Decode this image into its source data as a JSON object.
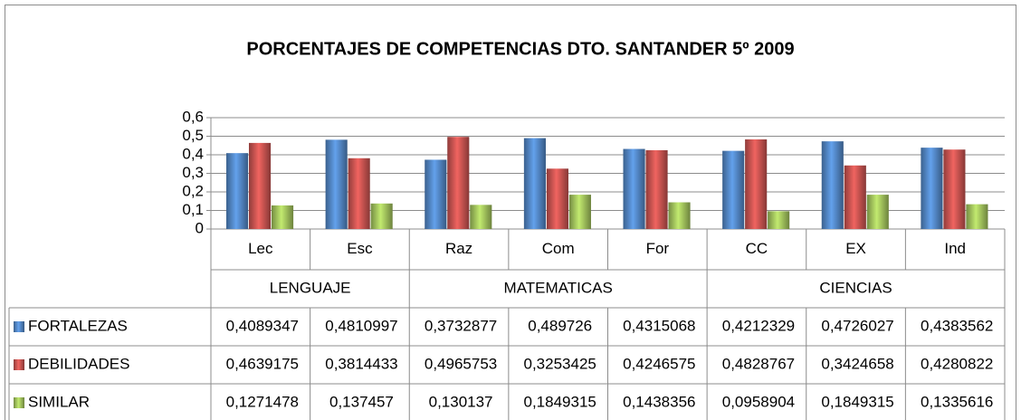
{
  "chart_data": {
    "type": "bar",
    "title": "PORCENTAJES DE COMPETENCIAS DTO. SANTANDER 5º 2009",
    "groups": [
      {
        "name": "LENGUAJE",
        "categories": [
          "Lec",
          "Esc"
        ]
      },
      {
        "name": "MATEMATICAS",
        "categories": [
          "Raz",
          "Com",
          "For"
        ]
      },
      {
        "name": "CIENCIAS",
        "categories": [
          "CC",
          "EX",
          "Ind"
        ]
      }
    ],
    "series": [
      {
        "name": "FORTALEZAS",
        "color": "#4f81bd",
        "values": [
          0.4089347,
          0.4810997,
          0.3732877,
          0.489726,
          0.4315068,
          0.4212329,
          0.4726027,
          0.4383562
        ],
        "value_labels": [
          "0,4089347",
          "0,4810997",
          "0,3732877",
          "0,489726",
          "0,4315068",
          "0,4212329",
          "0,4726027",
          "0,4383562"
        ]
      },
      {
        "name": "DEBILIDADES",
        "color": "#c0504d",
        "values": [
          0.4639175,
          0.3814433,
          0.4965753,
          0.3253425,
          0.4246575,
          0.4828767,
          0.3424658,
          0.4280822
        ],
        "value_labels": [
          "0,4639175",
          "0,3814433",
          "0,4965753",
          "0,3253425",
          "0,4246575",
          "0,4828767",
          "0,3424658",
          "0,4280822"
        ]
      },
      {
        "name": "SIMILAR",
        "color": "#9bbb59",
        "values": [
          0.1271478,
          0.137457,
          0.130137,
          0.1849315,
          0.1438356,
          0.0958904,
          0.1849315,
          0.1335616
        ],
        "value_labels": [
          "0,1271478",
          "0,137457",
          "0,130137",
          "0,1849315",
          "0,1438356",
          "0,0958904",
          "0,1849315",
          "0,1335616"
        ]
      }
    ],
    "ylim": [
      0,
      0.6
    ],
    "yticks": [
      0,
      {
        "value": 0.1,
        "label": "0,1"
      },
      {
        "value": 0.2,
        "label": "0,2"
      },
      {
        "value": 0.3,
        "label": "0,3"
      },
      {
        "value": 0.4,
        "label": "0,4"
      },
      {
        "value": 0.5,
        "label": "0,5"
      },
      {
        "value": 0.6,
        "label": "0,6"
      }
    ],
    "grid": true
  }
}
